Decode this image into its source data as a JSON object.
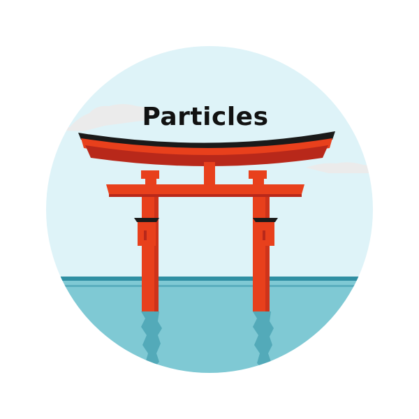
{
  "title": "Particles",
  "icon": "torii-gate-icon",
  "colors": {
    "sky": "#def3f8",
    "cloud": "#ebebeb",
    "water": "#7fc9d4",
    "water_line": "#2f8fa3",
    "gate_red": "#e8401c",
    "gate_dark": "#b8281a",
    "gate_black": "#1a1a1a",
    "text": "#111111"
  }
}
